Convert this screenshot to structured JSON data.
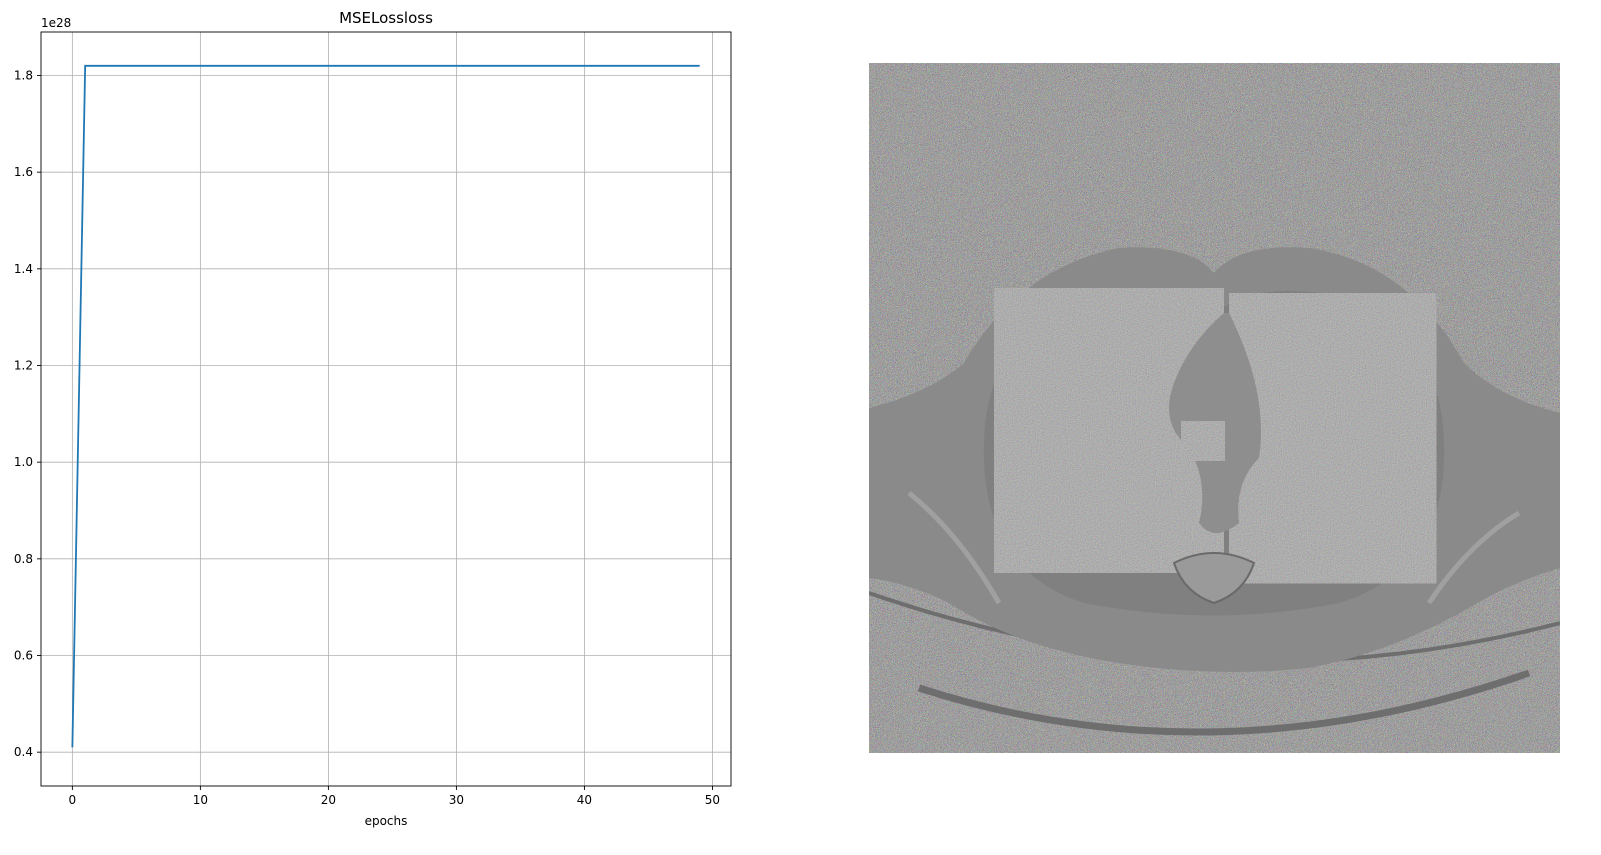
{
  "chart_data": {
    "type": "line",
    "title": "MSELossloss",
    "xlabel": "epochs",
    "ylabel": "",
    "y_scale_label": "1e28",
    "xlim": [
      -2.45,
      51.45
    ],
    "ylim": [
      0.33,
      1.89
    ],
    "x_ticks": [
      0,
      10,
      20,
      30,
      40,
      50
    ],
    "y_ticks": [
      0.4,
      0.6,
      0.8,
      1.0,
      1.2,
      1.4,
      1.6,
      1.8
    ],
    "y_tick_labels": [
      "0.4",
      "0.6",
      "0.8",
      "1.0",
      "1.2",
      "1.4",
      "1.6",
      "1.8"
    ],
    "grid": true,
    "series": [
      {
        "color": "#1f77b4",
        "x": [
          0,
          1,
          49
        ],
        "y": [
          0.41,
          1.82,
          1.82
        ]
      }
    ]
  },
  "image_panel": {
    "content": "axial chest CT slice with heavy noise",
    "colormap": "grayscale"
  }
}
